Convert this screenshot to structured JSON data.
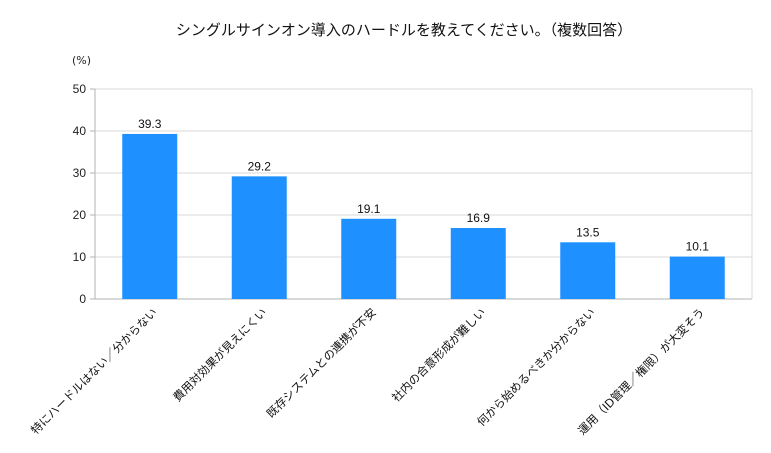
{
  "chart_data": {
    "type": "bar",
    "title": "シングルサインオン導入のハードルを教えてください。（複数回答）",
    "unit_label": "(%)",
    "categories": [
      "特にハードルはない／分からない",
      "費用対効果が見えにくい",
      "既存システムとの連携が不安",
      "社内の合意形成が難しい",
      "何から始めるべきか分からない",
      "運用（ID管理／権限）が大変そう"
    ],
    "values": [
      39.3,
      29.2,
      19.1,
      16.9,
      13.5,
      10.1
    ],
    "value_labels": [
      "39.3",
      "29.2",
      "19.1",
      "16.9",
      "13.5",
      "10.1"
    ],
    "ylim": [
      0,
      50
    ],
    "yticks": [
      0,
      10,
      20,
      30,
      40,
      50
    ],
    "grid": true,
    "bar_color": "#1e90ff"
  }
}
